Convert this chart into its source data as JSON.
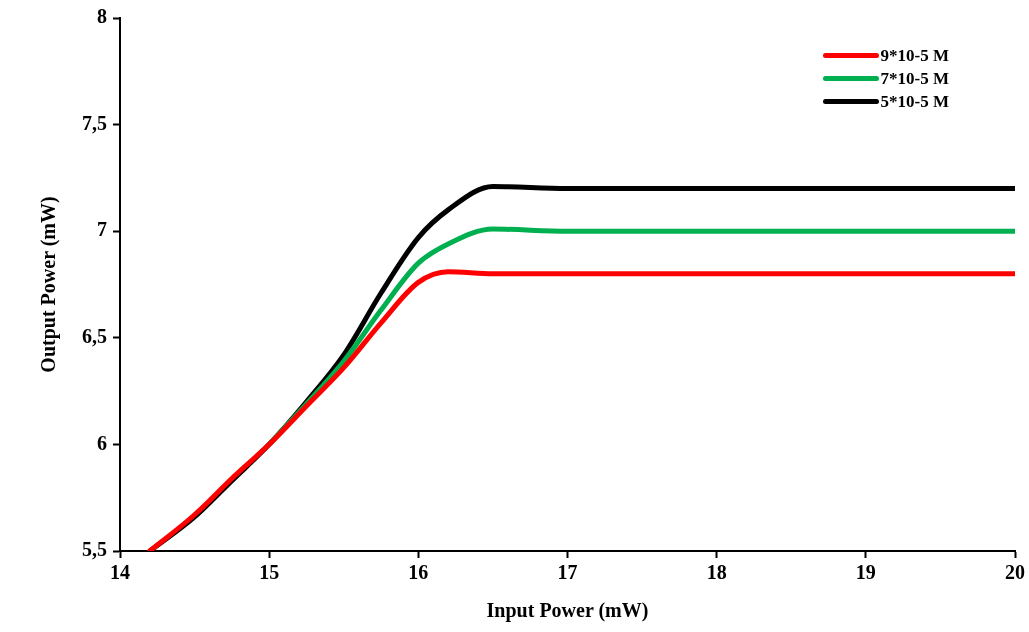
{
  "chart_data": {
    "type": "line",
    "xlabel": "Input Power (mW)",
    "ylabel": "Output Power (mW)",
    "x": [
      14.2,
      14.5,
      14.75,
      15,
      15.25,
      15.5,
      15.75,
      16,
      16.2,
      16.5,
      17,
      18,
      19,
      20
    ],
    "series": [
      {
        "name": "9*10-5 M",
        "color": "#ff0000",
        "values": [
          5.5,
          5.67,
          5.84,
          6.0,
          6.18,
          6.36,
          6.57,
          6.76,
          6.81,
          6.8,
          6.8,
          6.8,
          6.8,
          6.8
        ]
      },
      {
        "name": "7*10-5 M",
        "color": "#00b050",
        "values": [
          null,
          null,
          null,
          6.0,
          6.19,
          6.39,
          6.63,
          6.85,
          6.94,
          7.01,
          7.0,
          7.0,
          7.0,
          7.0
        ]
      },
      {
        "name": "5*10-5 M",
        "color": "#000000",
        "values": [
          5.5,
          5.66,
          5.83,
          6.0,
          6.2,
          6.42,
          6.71,
          6.97,
          7.1,
          7.21,
          7.2,
          7.2,
          7.2,
          7.2
        ]
      }
    ],
    "xlim": [
      14,
      20
    ],
    "xticks": [
      14,
      15,
      16,
      17,
      18,
      19,
      20
    ],
    "ylim": [
      5.5,
      8
    ],
    "yticks": [
      {
        "value": 5.5,
        "label": "5,5"
      },
      6,
      {
        "value": 6.5,
        "label": "6,5"
      },
      7,
      {
        "value": 7.5,
        "label": "7,5"
      },
      8
    ],
    "grid": false,
    "legend": "top right",
    "marker": "none",
    "line_style": "solid"
  }
}
